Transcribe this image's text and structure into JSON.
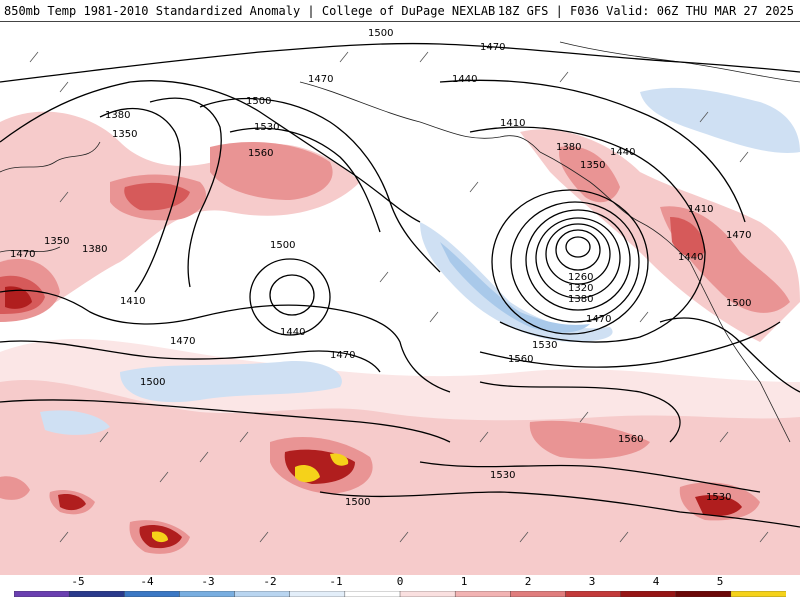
{
  "header": {
    "title_left": "850mb Temp 1981-2010 Standardized Anomaly | College of DuPage NEXLAB",
    "title_right": "18Z GFS | F036 Valid: 06Z THU MAR 27 2025"
  },
  "map": {
    "contour_labels": [
      "1500",
      "1470",
      "1470",
      "1440",
      "1380",
      "1350",
      "1470",
      "1500",
      "1530",
      "1560",
      "1410",
      "1380",
      "1350",
      "1440",
      "1350",
      "1380",
      "1410",
      "1500",
      "1440",
      "1470",
      "1470",
      "1500",
      "1260",
      "1320",
      "1380",
      "1470",
      "1530",
      "1560",
      "1560",
      "1530",
      "1500",
      "1530",
      "1410",
      "1470",
      "1440",
      "1500"
    ],
    "colors": {
      "pos1": "#f6cbcb",
      "pos2": "#e99494",
      "pos3": "#d65a5a",
      "pos4": "#b01e1e",
      "pos5": "#7a0c0c",
      "pos6": "#f5d21a",
      "neg1": "#cfe0f3",
      "neg2": "#a9c9ea",
      "contour": "#000000",
      "coast": "#222222"
    }
  },
  "colorbar": {
    "tick_labels": [
      "-5",
      "-4",
      "-3",
      "-2",
      "-1",
      "0",
      "1",
      "2",
      "3",
      "4",
      "5"
    ],
    "segments": [
      "#6a3fb0",
      "#2a3a8c",
      "#3b78c4",
      "#79aee0",
      "#b9d5f0",
      "#e3eef9",
      "#ffffff",
      "#fae0e0",
      "#f2b3b3",
      "#e07d7d",
      "#c33a3a",
      "#961515",
      "#6b0808",
      "#f5d21a"
    ]
  }
}
